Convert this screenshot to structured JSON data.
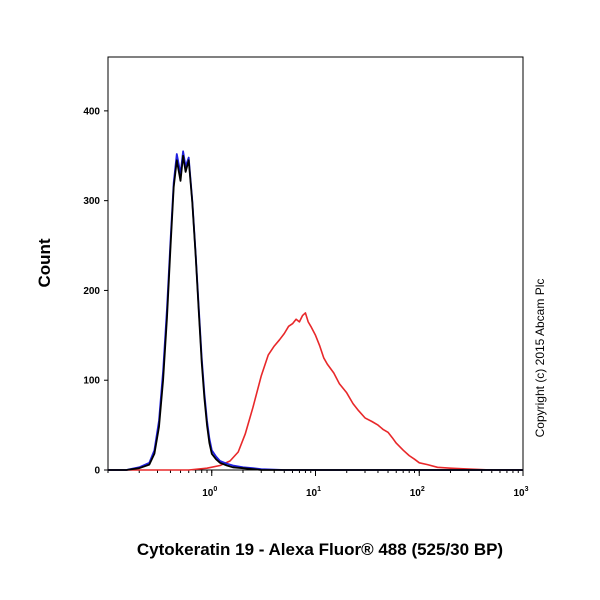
{
  "chart_data": {
    "type": "line",
    "title": "",
    "xlabel": "Cytokeratin 19 - Alexa Fluor® 488 (525/30 BP)",
    "ylabel": "Count",
    "x_scale": "log",
    "xlim": [
      0.1,
      1000
    ],
    "ylim": [
      0,
      460
    ],
    "y_ticks": [
      {
        "value": 0,
        "label": "0"
      },
      {
        "value": 100,
        "label": "100"
      },
      {
        "value": 200,
        "label": "200"
      },
      {
        "value": 300,
        "label": "300"
      },
      {
        "value": 400,
        "label": "400"
      }
    ],
    "x_ticks": [
      {
        "value": 1,
        "base": "10",
        "exp": "0"
      },
      {
        "value": 10,
        "base": "10",
        "exp": "1"
      },
      {
        "value": 100,
        "base": "10",
        "exp": "2"
      },
      {
        "value": 1000,
        "base": "10",
        "exp": "3"
      }
    ],
    "grid": false,
    "legend": "none",
    "copyright": "Copyright (c) 2015 Abcam Plc",
    "series": [
      {
        "color": "#e8282a",
        "x": [
          0.1,
          0.3,
          0.6,
          0.9,
          1.2,
          1.5,
          1.8,
          2.1,
          2.5,
          3.0,
          3.5,
          4.0,
          4.5,
          5.0,
          5.5,
          6.0,
          6.5,
          7.0,
          7.5,
          8.0,
          8.5,
          9.0,
          10,
          11,
          12,
          13,
          15,
          17,
          20,
          23,
          26,
          30,
          35,
          40,
          45,
          50,
          55,
          60,
          70,
          80,
          90,
          100,
          120,
          150,
          200,
          300,
          500,
          1000
        ],
        "y": [
          0,
          0,
          0,
          2,
          5,
          10,
          20,
          40,
          70,
          105,
          128,
          138,
          145,
          152,
          160,
          163,
          168,
          165,
          172,
          175,
          165,
          160,
          150,
          138,
          125,
          118,
          108,
          96,
          86,
          74,
          66,
          58,
          54,
          50,
          45,
          42,
          36,
          30,
          22,
          16,
          12,
          8,
          6,
          3,
          2,
          1,
          0,
          0
        ]
      },
      {
        "color": "#2020e0",
        "x": [
          0.1,
          0.15,
          0.2,
          0.25,
          0.28,
          0.31,
          0.34,
          0.37,
          0.4,
          0.43,
          0.46,
          0.5,
          0.53,
          0.56,
          0.6,
          0.65,
          0.7,
          0.75,
          0.8,
          0.85,
          0.9,
          0.95,
          1.0,
          1.1,
          1.2,
          1.4,
          1.6,
          2.0,
          2.5,
          3.0,
          5,
          10,
          1000
        ],
        "y": [
          0,
          0,
          3,
          8,
          22,
          55,
          110,
          180,
          255,
          320,
          352,
          330,
          355,
          338,
          348,
          300,
          240,
          180,
          125,
          85,
          55,
          35,
          22,
          15,
          10,
          7,
          5,
          3,
          2,
          1,
          0,
          0,
          0
        ]
      },
      {
        "color": "#000000",
        "x": [
          0.1,
          0.15,
          0.2,
          0.25,
          0.28,
          0.31,
          0.34,
          0.37,
          0.4,
          0.43,
          0.46,
          0.5,
          0.53,
          0.56,
          0.6,
          0.65,
          0.7,
          0.75,
          0.8,
          0.85,
          0.9,
          0.95,
          1.0,
          1.1,
          1.2,
          1.4,
          1.6,
          2.0,
          2.5,
          3.0,
          5,
          10,
          1000
        ],
        "y": [
          0,
          0,
          2,
          6,
          18,
          48,
          100,
          170,
          248,
          315,
          345,
          322,
          350,
          332,
          345,
          298,
          238,
          176,
          120,
          80,
          50,
          30,
          18,
          12,
          8,
          5,
          3,
          2,
          1,
          0,
          0,
          0,
          0
        ]
      }
    ]
  }
}
